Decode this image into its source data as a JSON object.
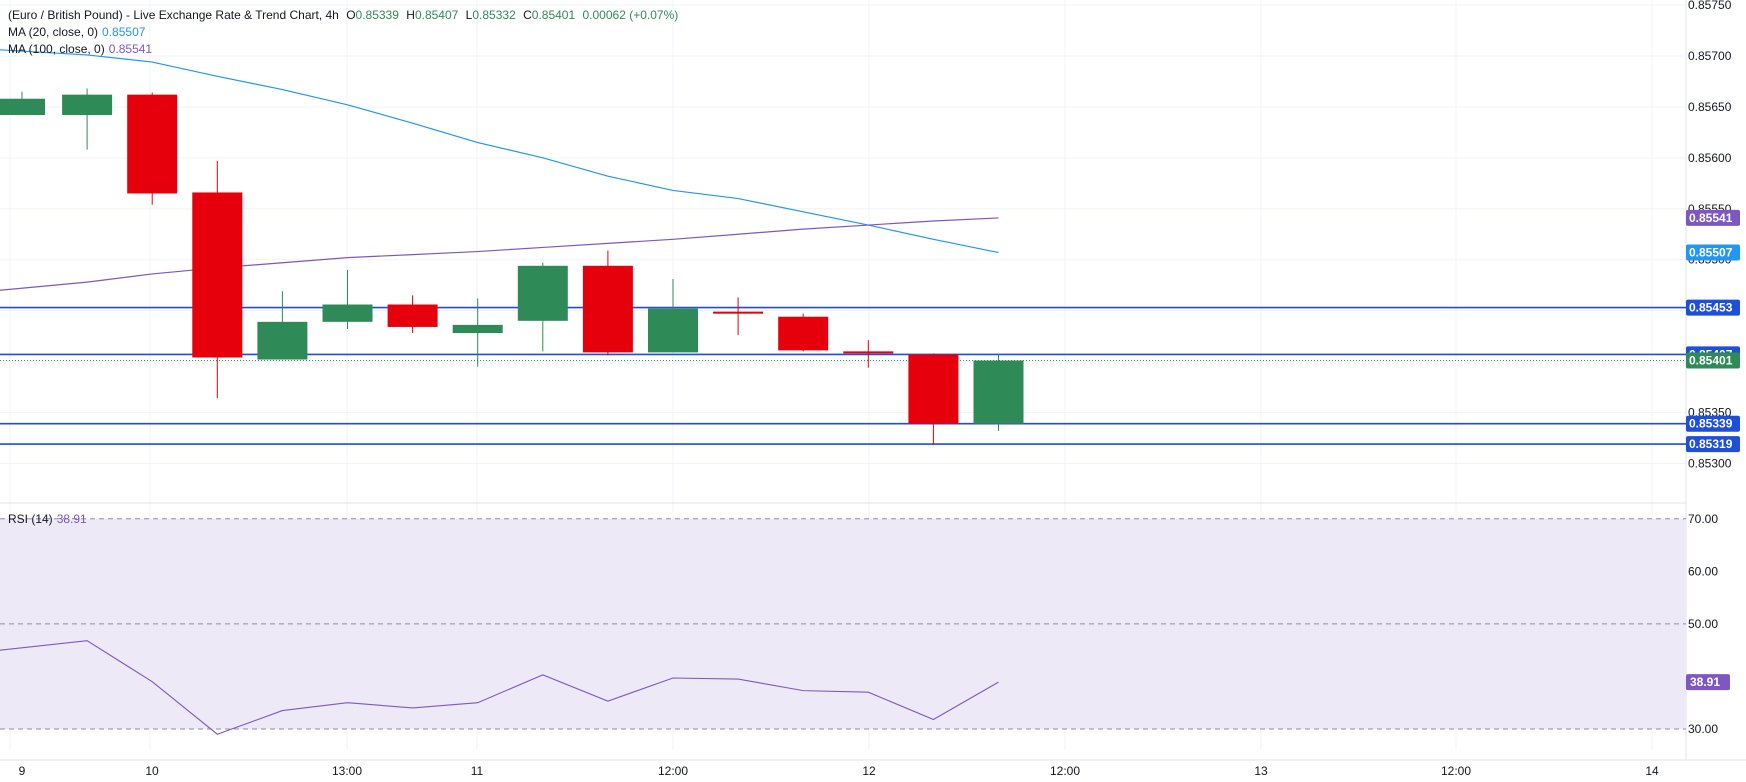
{
  "header": {
    "title": "(Euro / British Pound) - Live Exchange Rate & Trend Chart, 4h",
    "o_label": "O",
    "o_value": "0.85339",
    "h_label": "H",
    "h_value": "0.85407",
    "l_label": "L",
    "l_value": "0.85332",
    "c_label": "C",
    "c_value": "0.85401",
    "change": "0.00062 (+0.07%)",
    "ma20_label": "MA (20, close, 0)",
    "ma20_value": "0.85507",
    "ma100_label": "MA (100, close, 0)",
    "ma100_value": "0.85541",
    "rsi_label": "RSI (14)",
    "rsi_value": "38.91"
  },
  "colors": {
    "up": "#2e8b57",
    "down": "#e5000b",
    "ma20": "#2196f3",
    "ma100": "#7e57c2",
    "hline": "#1e4fd8",
    "grid": "#f0f3fa",
    "text": "#131722",
    "rsi_band": "#ede9f7"
  },
  "chart_data": [
    {
      "type": "candlestick",
      "title": "(Euro / British Pound) - Live Exchange Rate & Trend Chart, 4h",
      "ylim": [
        0.8527,
        0.8575
      ],
      "price_ticks": [
        "0.85750",
        "0.85700",
        "0.85650",
        "0.85600",
        "0.85550",
        "0.85500",
        "0.85450",
        "0.85400",
        "0.85350",
        "0.85300"
      ],
      "time_labels": [
        "9",
        "10",
        "13:00",
        "11",
        "12:00",
        "12",
        "12:00",
        "13",
        "12:00",
        "14"
      ],
      "candles": [
        {
          "o": 0.85642,
          "h": 0.85665,
          "l": 0.85642,
          "c": 0.85658
        },
        {
          "o": 0.85642,
          "h": 0.85668,
          "l": 0.85608,
          "c": 0.85662
        },
        {
          "o": 0.85662,
          "h": 0.85664,
          "l": 0.85554,
          "c": 0.85565
        },
        {
          "o": 0.85566,
          "h": 0.85597,
          "l": 0.85364,
          "c": 0.85404
        },
        {
          "o": 0.85402,
          "h": 0.85469,
          "l": 0.85402,
          "c": 0.85439
        },
        {
          "o": 0.85439,
          "h": 0.8549,
          "l": 0.85432,
          "c": 0.85456
        },
        {
          "o": 0.85456,
          "h": 0.85465,
          "l": 0.85428,
          "c": 0.85434
        },
        {
          "o": 0.85428,
          "h": 0.85462,
          "l": 0.85395,
          "c": 0.85436
        },
        {
          "o": 0.8544,
          "h": 0.85497,
          "l": 0.8541,
          "c": 0.85494
        },
        {
          "o": 0.85494,
          "h": 0.85509,
          "l": 0.85406,
          "c": 0.85409
        },
        {
          "o": 0.85409,
          "h": 0.85481,
          "l": 0.85409,
          "c": 0.85452
        },
        {
          "o": 0.85449,
          "h": 0.85463,
          "l": 0.85426,
          "c": 0.85447
        },
        {
          "o": 0.85444,
          "h": 0.85447,
          "l": 0.8541,
          "c": 0.85411
        },
        {
          "o": 0.8541,
          "h": 0.85421,
          "l": 0.85394,
          "c": 0.85408
        },
        {
          "o": 0.85407,
          "h": 0.85408,
          "l": 0.85318,
          "c": 0.85339
        },
        {
          "o": 0.85339,
          "h": 0.85407,
          "l": 0.85332,
          "c": 0.85401
        }
      ],
      "series": [
        {
          "name": "MA (20, close, 0)",
          "values": [
            0.85706,
            0.85701,
            0.85694,
            0.8568,
            0.85667,
            0.85652,
            0.85634,
            0.85615,
            0.856,
            0.85582,
            0.85568,
            0.8556,
            0.85547,
            0.85534,
            0.8552,
            0.85507
          ]
        },
        {
          "name": "MA (100, close, 0)",
          "values": [
            0.8547,
            0.85478,
            0.85486,
            0.85492,
            0.85497,
            0.85502,
            0.85505,
            0.85508,
            0.85512,
            0.85516,
            0.8552,
            0.85525,
            0.8553,
            0.85534,
            0.85538,
            0.85541
          ]
        }
      ],
      "horizontal_levels": [
        "0.85453",
        "0.85407",
        "0.85339",
        "0.85319"
      ],
      "last_price": "0.85401",
      "price_badges": [
        {
          "value": "0.85541",
          "color": "#7e57c2"
        },
        {
          "value": "0.85507",
          "color": "#2196f3"
        },
        {
          "value": "0.85453",
          "color": "#1e4fd8"
        },
        {
          "value": "0.85407",
          "color": "#1e4fd8"
        },
        {
          "value": "0.85401",
          "color": "#2e8b57"
        },
        {
          "value": "0.85339",
          "color": "#1e4fd8"
        },
        {
          "value": "0.85319",
          "color": "#1e4fd8"
        }
      ]
    },
    {
      "type": "line",
      "title": "RSI (14)",
      "ylim": [
        26,
        73
      ],
      "rsi_ticks": [
        "70.00",
        "60.00",
        "50.00",
        "30.00"
      ],
      "dashed_levels": [
        70,
        50,
        30
      ],
      "band": [
        30,
        70
      ],
      "series": [
        {
          "name": "RSI (14)",
          "values": [
            45.0,
            46.8,
            39.0,
            29.0,
            33.5,
            35.0,
            34.0,
            35.0,
            40.3,
            35.3,
            39.7,
            39.5,
            37.3,
            37.0,
            31.8,
            38.91
          ]
        }
      ],
      "last_value": "38.91"
    }
  ]
}
